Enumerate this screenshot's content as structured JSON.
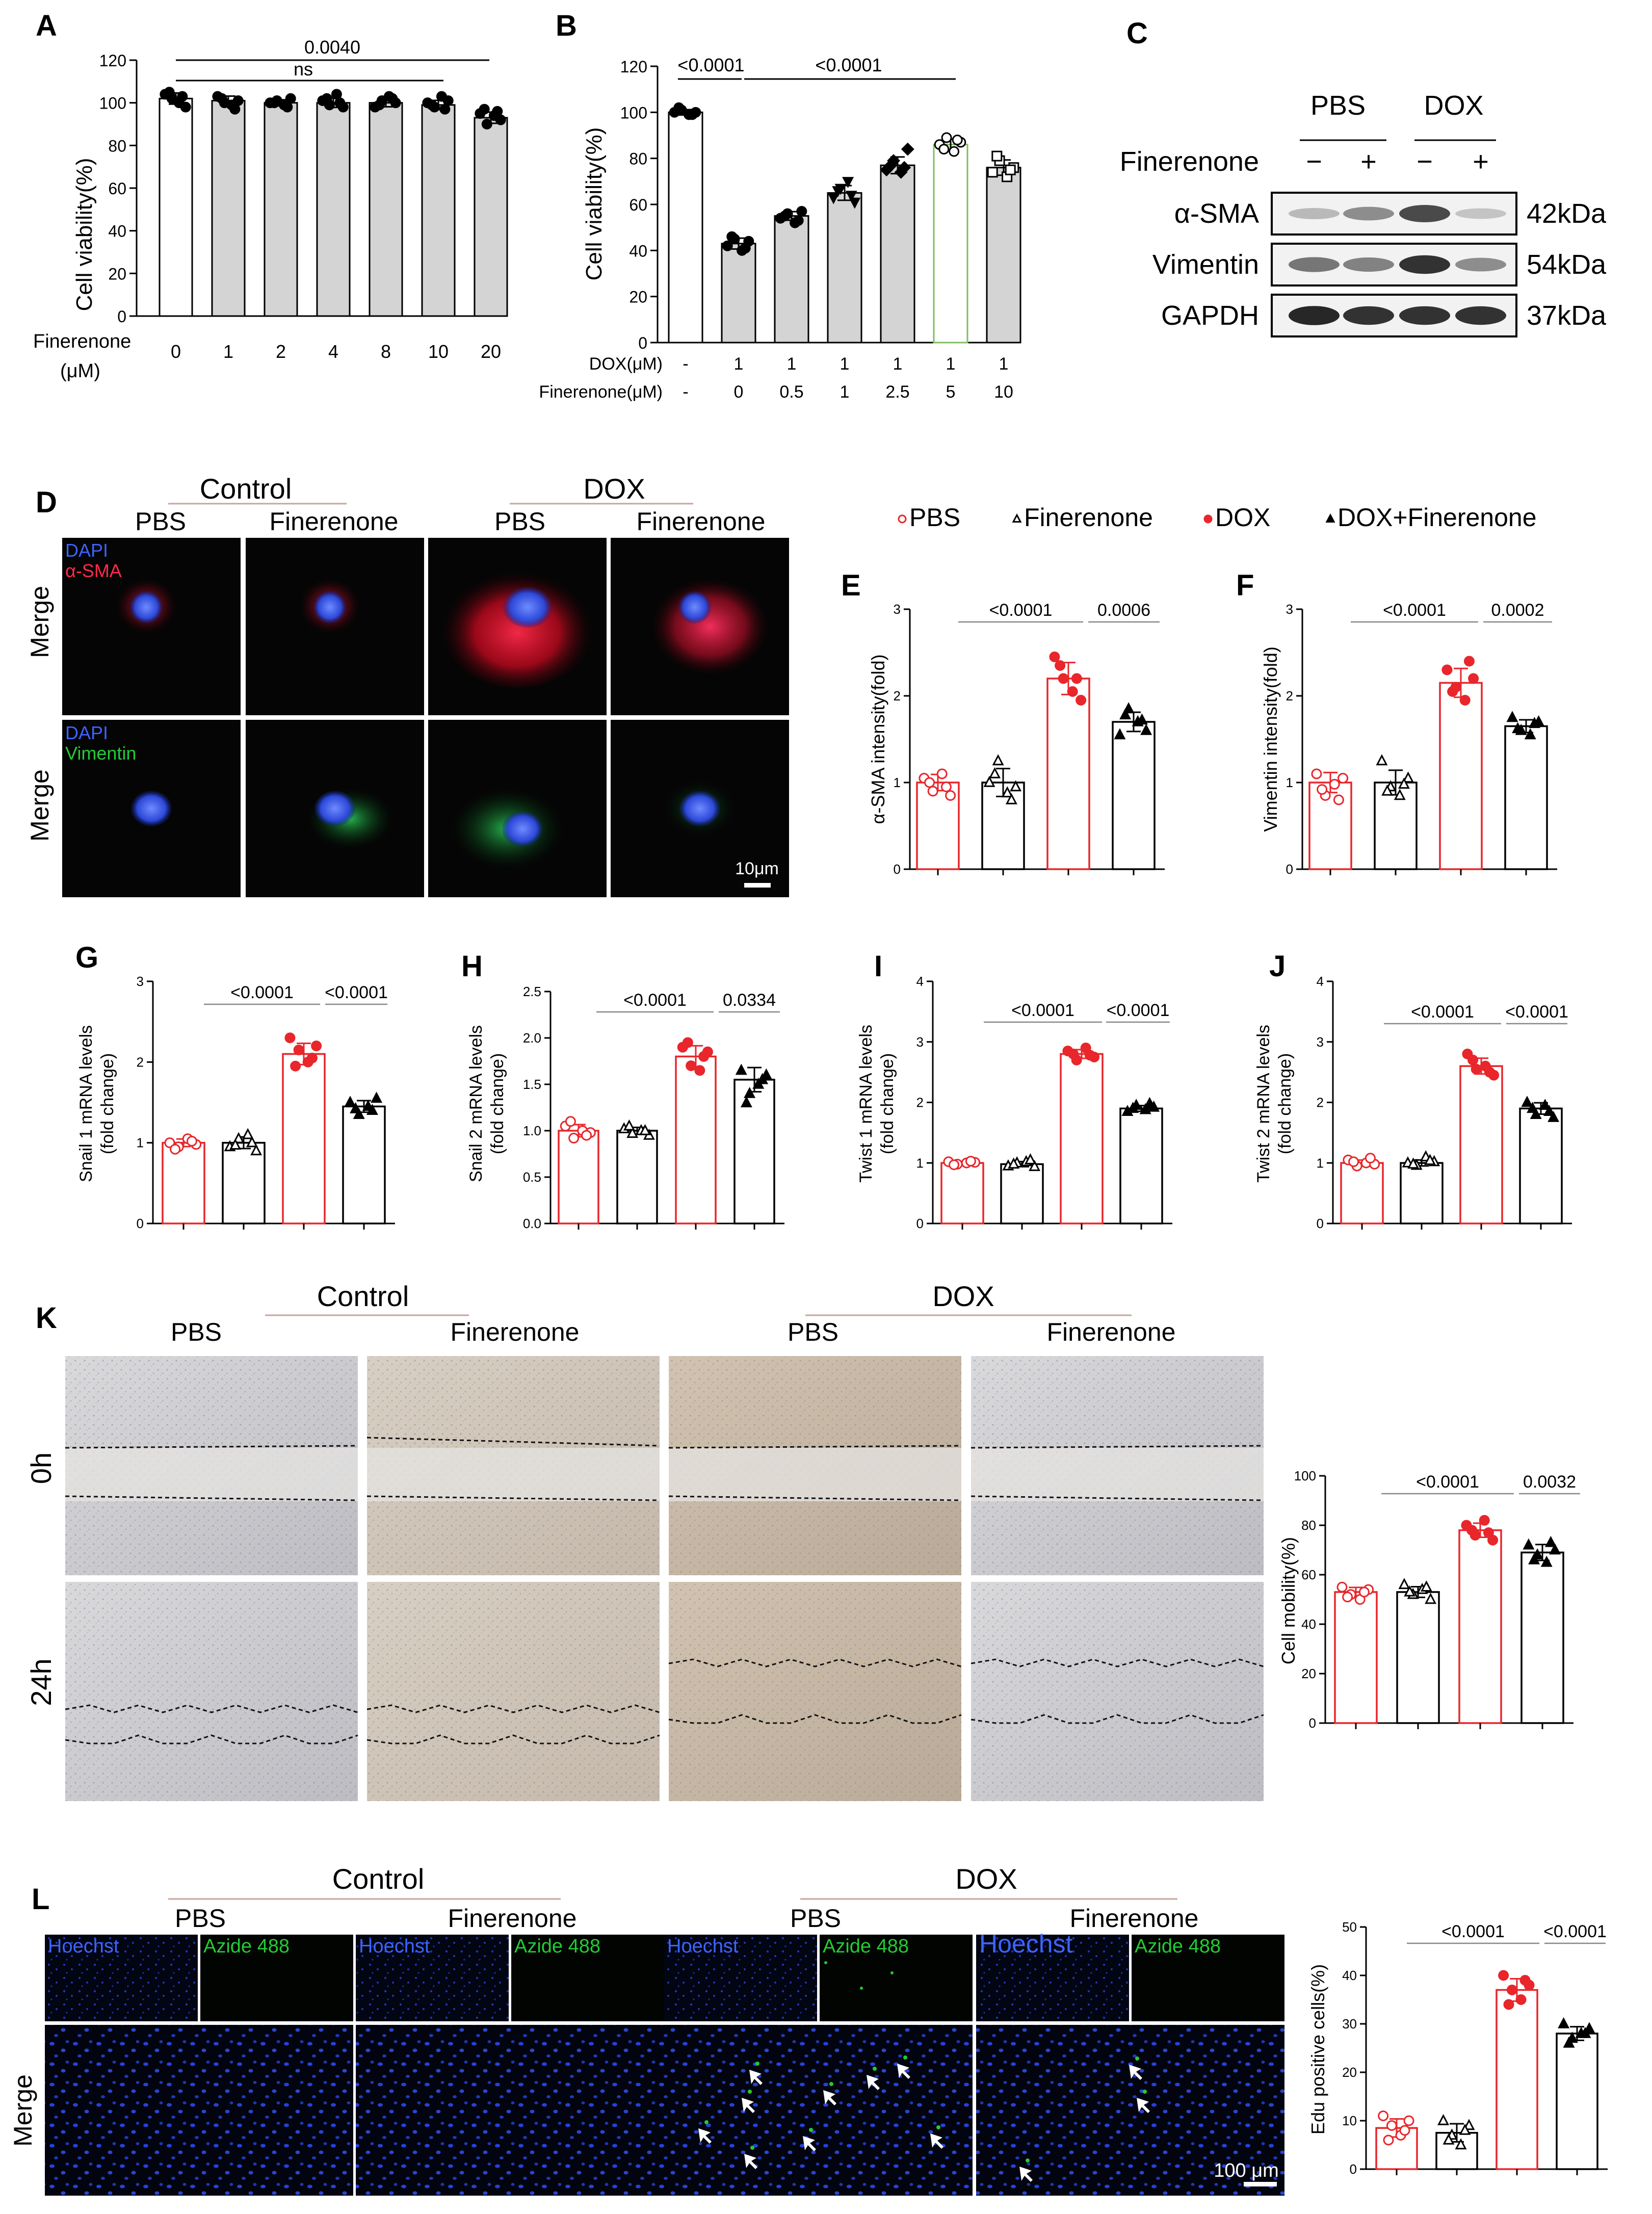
{
  "colors": {
    "red": "#e8262b",
    "black": "#111111",
    "bar_gray": "#d4d4d4",
    "green_bar": "#7fbf5f",
    "dapi": "#3c64ff",
    "sma": "#ff2a4a",
    "vim": "#22cc33",
    "azide": "#22cc33"
  },
  "panelA": {
    "letter": "A",
    "ylabel": "Cell viability(%)",
    "ylim": [
      0,
      120
    ],
    "yticks": [
      "0",
      "20",
      "40",
      "60",
      "80",
      "100",
      "120"
    ],
    "xrow_label": "Finerenone",
    "xrow_unit": "(μM)",
    "categories": [
      "0",
      "1",
      "2",
      "4",
      "8",
      "10",
      "20"
    ],
    "sig_top": "0.0040",
    "sig_ns": "ns"
  },
  "panelB": {
    "letter": "B",
    "ylabel": "Cell viability(%)",
    "ylim": [
      0,
      120
    ],
    "yticks": [
      "0",
      "20",
      "40",
      "60",
      "80",
      "100",
      "120"
    ],
    "row1_label": "DOX(μM)",
    "row1": [
      "-",
      "1",
      "1",
      "1",
      "1",
      "1",
      "1"
    ],
    "row2_label": "Finerenone(μM)",
    "row2": [
      "-",
      "0",
      "0.5",
      "1",
      "2.5",
      "5",
      "10"
    ],
    "sig": [
      "<0.0001",
      "<0.0001"
    ]
  },
  "panelC": {
    "letter": "C",
    "group1": "PBS",
    "group2": "DOX",
    "row_label": "Finerenone",
    "signs": [
      "−",
      "+",
      "−",
      "+"
    ],
    "proteins": [
      "α-SMA",
      "Vimentin",
      "GAPDH"
    ],
    "sizes": [
      "42kDa",
      "54kDa",
      "37kDa"
    ]
  },
  "panelD": {
    "letter": "D",
    "group1": "Control",
    "group2": "DOX",
    "cols": [
      "PBS",
      "Finerenone",
      "PBS",
      "Finerenone"
    ],
    "row_label": "Merge",
    "row1_stain": [
      "DAPI",
      "α-SMA"
    ],
    "row2_stain": [
      "DAPI",
      "Vimentin"
    ],
    "scale": "10μm"
  },
  "legend": [
    "PBS",
    "Finerenone",
    "DOX",
    "DOX+Finerenone"
  ],
  "panelE": {
    "letter": "E",
    "ylabel": "α-SMA intensity(fold)",
    "yticks": [
      "0",
      "1",
      "2",
      "3"
    ],
    "sig": [
      "<0.0001",
      "0.0006"
    ]
  },
  "panelF": {
    "letter": "F",
    "ylabel": "Vimentin intensity(fold)",
    "yticks": [
      "0",
      "1",
      "2",
      "3"
    ],
    "sig": [
      "<0.0001",
      "0.0002"
    ]
  },
  "panelG": {
    "letter": "G",
    "ylabel1": "Snail 1 mRNA levels",
    "ylabel2": "(fold change)",
    "yticks": [
      "0",
      "1",
      "2",
      "3"
    ],
    "sig": [
      "<0.0001",
      "<0.0001"
    ]
  },
  "panelH": {
    "letter": "H",
    "ylabel1": "Snail 2 mRNA levels",
    "ylabel2": "(fold change)",
    "yticks": [
      "0.0",
      "0.5",
      "1.0",
      "1.5",
      "2.0",
      "2.5"
    ],
    "sig": [
      "<0.0001",
      "0.0334"
    ]
  },
  "panelI": {
    "letter": "I",
    "ylabel1": "Twist 1 mRNA levels",
    "ylabel2": "(fold change)",
    "yticks": [
      "0",
      "1",
      "2",
      "3",
      "4"
    ],
    "sig": [
      "<0.0001",
      "<0.0001"
    ]
  },
  "panelJ": {
    "letter": "J",
    "ylabel1": "Twist 2 mRNA levels",
    "ylabel2": "(fold change)",
    "yticks": [
      "0",
      "1",
      "2",
      "3",
      "4"
    ],
    "sig": [
      "<0.0001",
      "<0.0001"
    ]
  },
  "panelK": {
    "letter": "K",
    "group1": "Control",
    "group2": "DOX",
    "cols": [
      "PBS",
      "Finerenone",
      "PBS",
      "Finerenone"
    ],
    "rows": [
      "0h",
      "24h"
    ],
    "ylabel": "Cell mobility(%)",
    "yticks": [
      "0",
      "20",
      "40",
      "60",
      "80",
      "100"
    ],
    "sig": [
      "<0.0001",
      "0.0032"
    ]
  },
  "panelL": {
    "letter": "L",
    "group1": "Control",
    "group2": "DOX",
    "cols": [
      "PBS",
      "Finerenone",
      "PBS",
      "Finerenone"
    ],
    "stain1": "Hoechst",
    "stain2": "Azide 488",
    "row_label": "Merge",
    "scale": "100 μm",
    "ylabel": "Edu positive cells(%)",
    "yticks": [
      "0",
      "10",
      "20",
      "30",
      "40",
      "50"
    ],
    "sig": [
      "<0.0001",
      "<0.0001"
    ]
  },
  "chart_data": [
    {
      "panel": "A",
      "type": "bar",
      "title": "",
      "xlabel": "Finerenone (μM)",
      "ylabel": "Cell viability(%)",
      "ylim": [
        0,
        120
      ],
      "categories": [
        "0",
        "1",
        "2",
        "4",
        "8",
        "10",
        "20"
      ],
      "values": [
        102,
        101,
        100,
        100,
        100,
        99,
        93
      ],
      "points": [
        [
          104,
          102,
          100,
          98,
          105,
          103
        ],
        [
          103,
          100,
          99,
          101,
          102,
          97
        ],
        [
          100,
          101,
          99,
          102,
          100,
          98
        ],
        [
          101,
          99,
          104,
          98,
          102,
          100
        ],
        [
          98,
          101,
          103,
          100,
          99,
          102
        ],
        [
          100,
          98,
          103,
          101,
          99,
          97
        ],
        [
          95,
          90,
          94,
          92,
          97,
          96
        ]
      ]
    },
    {
      "panel": "B",
      "type": "bar",
      "title": "",
      "ylabel": "Cell viability(%)",
      "ylim": [
        0,
        120
      ],
      "categories": [
        "-/-",
        "1/0",
        "1/0.5",
        "1/1",
        "1/2.5",
        "1/5",
        "1/10"
      ],
      "values": [
        100,
        43,
        55,
        65,
        77,
        86,
        76
      ],
      "points": [
        [
          100,
          101,
          99,
          100,
          102,
          99
        ],
        [
          42,
          45,
          40,
          44,
          46,
          41
        ],
        [
          54,
          56,
          52,
          57,
          55,
          53
        ],
        [
          63,
          67,
          70,
          61,
          66,
          64
        ],
        [
          75,
          79,
          74,
          84,
          77,
          76
        ],
        [
          86,
          89,
          83,
          87,
          84,
          88
        ],
        [
          74,
          79,
          72,
          76,
          81,
          75
        ]
      ]
    },
    {
      "panel": "E",
      "type": "bar",
      "title": "",
      "ylabel": "α-SMA intensity(fold)",
      "ylim": [
        0,
        3
      ],
      "categories": [
        "PBS",
        "Finerenone",
        "DOX",
        "DOX+Finerenone"
      ],
      "values": [
        1.0,
        1.0,
        2.2,
        1.7
      ],
      "points": [
        [
          1.05,
          0.9,
          1.1,
          0.85,
          1.0,
          0.95
        ],
        [
          1.0,
          1.25,
          0.88,
          0.95,
          1.1,
          0.8
        ],
        [
          2.45,
          2.2,
          2.05,
          1.95,
          2.35,
          2.2
        ],
        [
          1.55,
          1.85,
          1.7,
          1.6,
          1.78,
          1.72
        ]
      ]
    },
    {
      "panel": "F",
      "type": "bar",
      "title": "",
      "ylabel": "Vimentin intensity(fold)",
      "ylim": [
        0,
        3
      ],
      "categories": [
        "PBS",
        "Finerenone",
        "DOX",
        "DOX+Finerenone"
      ],
      "values": [
        1.0,
        1.0,
        2.15,
        1.65
      ],
      "points": [
        [
          1.1,
          0.85,
          0.98,
          1.05,
          0.92,
          0.8
        ],
        [
          1.25,
          0.95,
          0.85,
          1.05,
          0.9,
          0.98
        ],
        [
          2.3,
          2.1,
          1.95,
          2.2,
          2.05,
          2.4
        ],
        [
          1.75,
          1.6,
          1.55,
          1.7,
          1.62,
          1.68
        ]
      ]
    },
    {
      "panel": "G",
      "type": "bar",
      "title": "",
      "ylabel": "Snail 1 mRNA levels (fold change)",
      "ylim": [
        0,
        3
      ],
      "categories": [
        "PBS",
        "Finerenone",
        "DOX",
        "DOX+Finerenone"
      ],
      "values": [
        1.0,
        1.0,
        2.1,
        1.45
      ],
      "points": [
        [
          1.0,
          0.95,
          1.05,
          0.98,
          0.92,
          1.02
        ],
        [
          0.95,
          1.05,
          1.1,
          0.9,
          0.97,
          1.0
        ],
        [
          2.3,
          2.15,
          2.0,
          2.2,
          1.95,
          2.05
        ],
        [
          1.5,
          1.35,
          1.45,
          1.55,
          1.42,
          1.4
        ]
      ]
    },
    {
      "panel": "H",
      "type": "bar",
      "title": "",
      "ylabel": "Snail 2 mRNA levels (fold change)",
      "ylim": [
        0,
        2.5
      ],
      "categories": [
        "PBS",
        "Finerenone",
        "DOX",
        "DOX+Finerenone"
      ],
      "values": [
        1.0,
        1.0,
        1.8,
        1.55
      ],
      "points": [
        [
          1.05,
          0.92,
          1.0,
          0.98,
          1.1,
          0.95
        ],
        [
          1.02,
          0.97,
          1.0,
          0.95,
          1.05,
          1.0
        ],
        [
          1.9,
          1.7,
          1.65,
          1.85,
          1.95,
          1.8
        ],
        [
          1.65,
          1.4,
          1.5,
          1.6,
          1.3,
          1.55
        ]
      ]
    },
    {
      "panel": "I",
      "type": "bar",
      "title": "",
      "ylabel": "Twist 1 mRNA levels (fold change)",
      "ylim": [
        0,
        4
      ],
      "categories": [
        "PBS",
        "Finerenone",
        "DOX",
        "DOX+Finerenone"
      ],
      "values": [
        1.0,
        0.98,
        2.8,
        1.9
      ],
      "points": [
        [
          1.02,
          0.98,
          1.0,
          1.01,
          0.97,
          1.03
        ],
        [
          0.95,
          1.0,
          1.02,
          0.94,
          0.98,
          1.05
        ],
        [
          2.85,
          2.7,
          2.9,
          2.75,
          2.8,
          2.78
        ],
        [
          1.85,
          1.95,
          1.88,
          1.92,
          1.9,
          1.98
        ]
      ]
    },
    {
      "panel": "J",
      "type": "bar",
      "title": "",
      "ylabel": "Twist 2 mRNA levels (fold change)",
      "ylim": [
        0,
        4
      ],
      "categories": [
        "PBS",
        "Finerenone",
        "DOX",
        "DOX+Finerenone"
      ],
      "values": [
        1.0,
        1.0,
        2.6,
        1.9
      ],
      "points": [
        [
          1.05,
          0.95,
          1.0,
          0.98,
          1.02,
          1.08
        ],
        [
          1.0,
          0.96,
          1.1,
          1.02,
          0.98,
          1.04
        ],
        [
          2.8,
          2.55,
          2.6,
          2.45,
          2.7,
          2.5
        ],
        [
          2.0,
          1.8,
          1.95,
          1.75,
          1.9,
          1.85
        ]
      ]
    },
    {
      "panel": "K",
      "type": "bar",
      "title": "",
      "ylabel": "Cell mobility(%)",
      "ylim": [
        0,
        100
      ],
      "categories": [
        "PBS",
        "Finerenone",
        "DOX",
        "DOX+Finerenone"
      ],
      "values": [
        53,
        53,
        78,
        69
      ],
      "points": [
        [
          55,
          52,
          50,
          54,
          51,
          53
        ],
        [
          56,
          52,
          54,
          50,
          53,
          55
        ],
        [
          80,
          76,
          82,
          74,
          78,
          77
        ],
        [
          72,
          68,
          65,
          70,
          66,
          73
        ]
      ]
    },
    {
      "panel": "L",
      "type": "bar",
      "title": "",
      "ylabel": "Edu positive cells(%)",
      "ylim": [
        0,
        50
      ],
      "categories": [
        "PBS",
        "Finerenone",
        "DOX",
        "DOX+Finerenone"
      ],
      "values": [
        8.5,
        7.5,
        37,
        28
      ],
      "points": [
        [
          11,
          9,
          7,
          10,
          6,
          8
        ],
        [
          10,
          7,
          5,
          9,
          6,
          8
        ],
        [
          40,
          37,
          35,
          38,
          34,
          39
        ],
        [
          30,
          27,
          28,
          29,
          26,
          28
        ]
      ]
    }
  ]
}
